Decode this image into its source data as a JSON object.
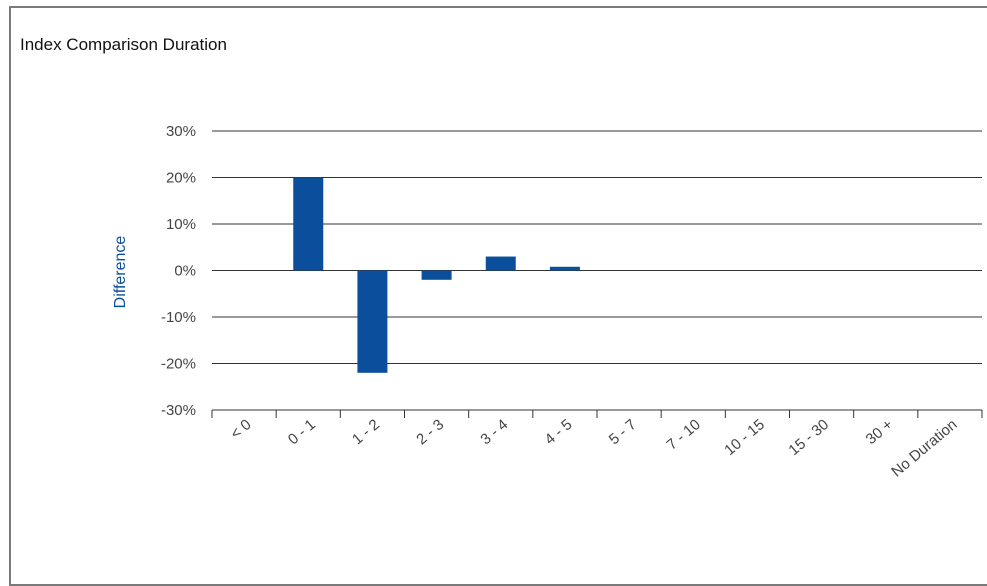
{
  "chart_data": {
    "type": "bar",
    "title": "Index Comparison Duration",
    "ylabel": "Difference",
    "xlabel": "",
    "categories": [
      "< 0",
      "0 - 1",
      "1 - 2",
      "2 - 3",
      "3 - 4",
      "4 - 5",
      "5 - 7",
      "7 - 10",
      "10 - 15",
      "15 - 30",
      "30 +",
      "No Duration"
    ],
    "values": [
      0,
      20,
      -22,
      -2,
      3,
      0.8,
      0,
      0,
      0,
      0,
      0,
      0
    ],
    "ylim": [
      -30,
      30
    ],
    "yticks": [
      30,
      20,
      10,
      0,
      -10,
      -20,
      -30
    ],
    "ytick_labels": [
      "30%",
      "20%",
      "10%",
      "0%",
      "-10%",
      "-20%",
      "-30%"
    ],
    "grid": true,
    "bar_color": "#0b4f9c"
  }
}
